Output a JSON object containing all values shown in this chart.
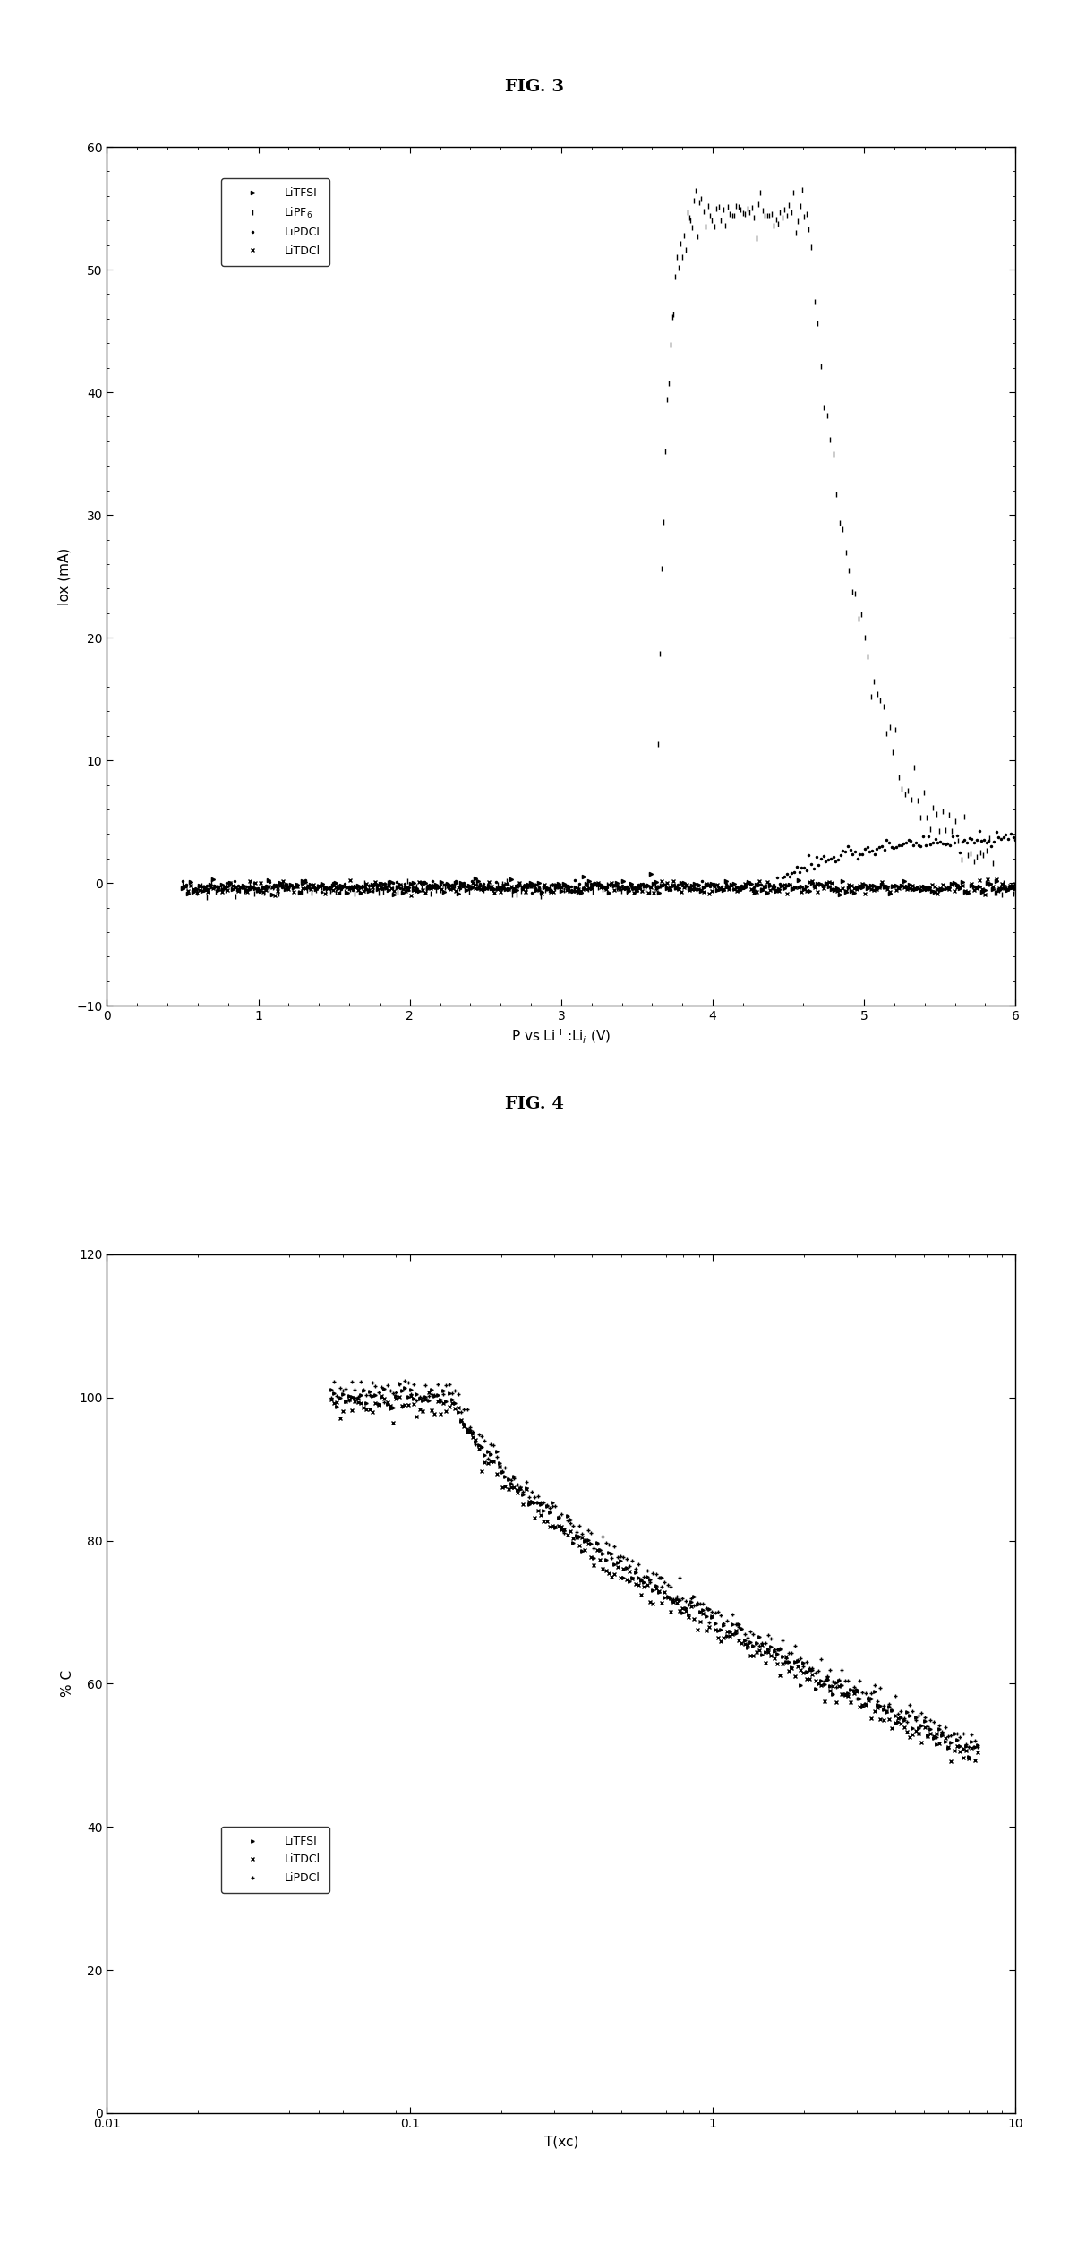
{
  "fig3_title": "FIG. 3",
  "fig4_title": "FIG. 4",
  "fig3_xlabel": "P vs Li$^+$:Li$_i$ (V)",
  "fig3_ylabel": "Iox (mA)",
  "fig3_xlim": [
    0,
    6
  ],
  "fig3_ylim": [
    -10,
    60
  ],
  "fig3_xticks": [
    0,
    1,
    2,
    3,
    4,
    5,
    6
  ],
  "fig3_yticks": [
    -10,
    0,
    10,
    20,
    30,
    40,
    50,
    60
  ],
  "fig4_xlabel": "T(xc)",
  "fig4_ylabel": "% C",
  "fig4_xlim": [
    0.01,
    10
  ],
  "fig4_ylim": [
    0,
    120
  ],
  "fig4_yticks": [
    0,
    20,
    40,
    60,
    80,
    100,
    120
  ],
  "legend3_labels": [
    "LiTFSI",
    "LiPF$_6$",
    "LiPDCl",
    "LiTDCl"
  ],
  "legend4_labels": [
    "LiTFSI",
    "LiTDCl",
    "LiPDCl"
  ],
  "bg_color": "#ffffff",
  "line_color": "#000000",
  "title_fontsize": 14,
  "label_fontsize": 11,
  "tick_fontsize": 10,
  "legend_fontsize": 9
}
